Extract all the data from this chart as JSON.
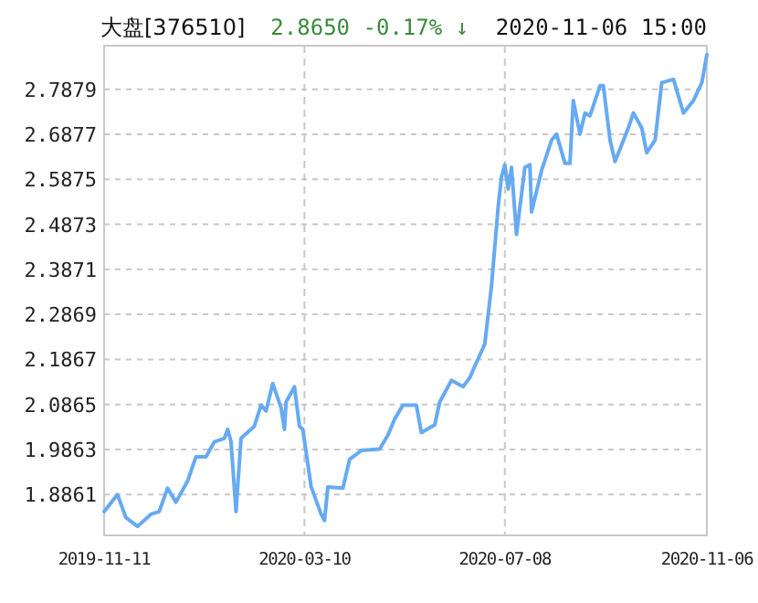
{
  "chart_data": {
    "type": "line",
    "title": "大盘[376510]",
    "subtitle": "2.8650 -0.17% ↓",
    "annotations": [
      "2020-11-06 15:00"
    ],
    "x": [
      "2019-11-11",
      "2019-11-19",
      "2019-11-24",
      "2019-12-01",
      "2019-12-09",
      "2019-12-14",
      "2019-12-19",
      "2019-12-24",
      "2019-12-31",
      "2020-01-05",
      "2020-01-11",
      "2020-01-16",
      "2020-01-22",
      "2020-01-24",
      "2020-01-26",
      "2020-01-29",
      "2020-02-01",
      "2020-02-09",
      "2020-02-13",
      "2020-02-16",
      "2020-02-20",
      "2020-02-25",
      "2020-02-27",
      "2020-02-28",
      "2020-03-04",
      "2020-03-07",
      "2020-03-09",
      "2020-03-14",
      "2020-03-20",
      "2020-03-22",
      "2020-03-24",
      "2020-04-02",
      "2020-04-06",
      "2020-04-13",
      "2020-04-24",
      "2020-04-29",
      "2020-05-03",
      "2020-05-08",
      "2020-05-16",
      "2020-05-19",
      "2020-05-27",
      "2020-05-30",
      "2020-06-06",
      "2020-06-13",
      "2020-06-17",
      "2020-06-21",
      "2020-06-26",
      "2020-06-30",
      "2020-07-04",
      "2020-07-06",
      "2020-07-08",
      "2020-07-10",
      "2020-07-12",
      "2020-07-15",
      "2020-07-20",
      "2020-07-23",
      "2020-07-24",
      "2020-07-30",
      "2020-08-05",
      "2020-08-08",
      "2020-08-13",
      "2020-08-16",
      "2020-08-18",
      "2020-08-22",
      "2020-08-25",
      "2020-08-28",
      "2020-09-03",
      "2020-09-05",
      "2020-09-09",
      "2020-09-12",
      "2020-09-20",
      "2020-09-23",
      "2020-09-28",
      "2020-10-01",
      "2020-10-06",
      "2020-10-10",
      "2020-10-17",
      "2020-10-23",
      "2020-10-29",
      "2020-11-03",
      "2020-11-06"
    ],
    "series": [
      {
        "color": "#66aaf2",
        "values": [
          1.848,
          1.886,
          1.835,
          1.815,
          1.842,
          1.848,
          1.9,
          1.869,
          1.916,
          1.97,
          1.97,
          2.003,
          2.011,
          2.031,
          2.004,
          1.848,
          2.011,
          2.038,
          2.085,
          2.072,
          2.133,
          2.079,
          2.031,
          2.092,
          2.126,
          2.038,
          2.031,
          1.903,
          1.842,
          1.828,
          1.903,
          1.9,
          1.964,
          1.984,
          1.987,
          2.018,
          2.054,
          2.085,
          2.085,
          2.024,
          2.041,
          2.092,
          2.14,
          2.126,
          2.146,
          2.18,
          2.221,
          2.35,
          2.526,
          2.593,
          2.62,
          2.566,
          2.614,
          2.465,
          2.614,
          2.62,
          2.515,
          2.607,
          2.675,
          2.688,
          2.623,
          2.623,
          2.763,
          2.688,
          2.735,
          2.729,
          2.796,
          2.796,
          2.675,
          2.627,
          2.702,
          2.735,
          2.702,
          2.647,
          2.675,
          2.803,
          2.81,
          2.735,
          2.763,
          2.803,
          2.865
        ]
      }
    ],
    "xlim": [
      "2019-11-11",
      "2020-11-06"
    ],
    "ylim": [
      1.795,
      2.885
    ],
    "xticks": [
      "2019-11-11",
      "2020-03-10",
      "2020-07-08",
      "2020-11-06"
    ],
    "yticks": [
      1.8861,
      1.9863,
      2.0865,
      2.1867,
      2.2869,
      2.3871,
      2.4873,
      2.5875,
      2.6877,
      2.7879
    ],
    "grid": true
  }
}
